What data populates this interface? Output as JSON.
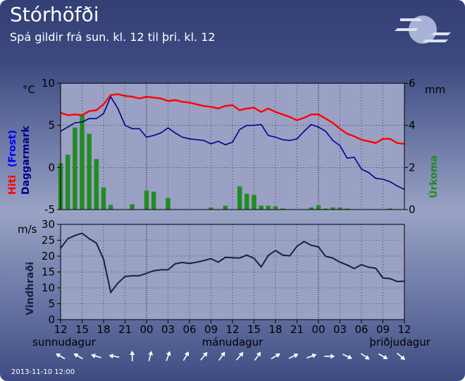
{
  "header": {
    "title": "Stórhöfði",
    "subtitle": "Spá gildir frá sun. kl. 12 til þri. kl. 12",
    "timestamp": "2013-11-10 12:00",
    "logo_icon": "vedurstofa-logo-icon"
  },
  "colors": {
    "temperature": "#ff0000",
    "dewpoint": "#00008b",
    "precipitation": "#228b22",
    "wind": "#1a1f40",
    "plot_bg": "#9aa1c4"
  },
  "chart_data": [
    {
      "type": "line",
      "y_unit_left": "°C",
      "y_unit_right": "mm",
      "ylabel_left_parts": [
        "Hiti",
        "(Frost)",
        "Daggarmark"
      ],
      "ylabel_right": "Úrkoma",
      "ylim_left": [
        -5,
        10
      ],
      "ylim_right": [
        0,
        6
      ],
      "yticks_left": [
        -5,
        0,
        5,
        10
      ],
      "yticks_right": [
        0,
        2,
        4,
        6
      ],
      "grid": "dotted",
      "x_range_hours": [
        12,
        60
      ],
      "series": [
        {
          "key": "temperature",
          "type": "line",
          "x": [
            12,
            13,
            14,
            15,
            16,
            17,
            18,
            19,
            20,
            21,
            22,
            23,
            24,
            25,
            26,
            27,
            28,
            29,
            30,
            31,
            32,
            33,
            34,
            35,
            36,
            37,
            38,
            39,
            40,
            41,
            42,
            43,
            44,
            45,
            46,
            47,
            48,
            49,
            50,
            51,
            52,
            53,
            54,
            55,
            56,
            57,
            58,
            59,
            60
          ],
          "values": [
            6.5,
            6.2,
            6.3,
            6.2,
            6.7,
            6.8,
            7.5,
            8.6,
            8.7,
            8.5,
            8.4,
            8.2,
            8.4,
            8.3,
            8.2,
            7.9,
            8.0,
            7.8,
            7.7,
            7.5,
            7.3,
            7.2,
            7.0,
            7.3,
            7.4,
            6.8,
            7.0,
            7.1,
            6.6,
            7.0,
            6.6,
            6.3,
            6.0,
            5.6,
            5.9,
            6.3,
            6.3,
            5.8,
            5.3,
            4.6,
            4.0,
            3.7,
            3.3,
            3.1,
            2.9,
            3.4,
            3.4,
            2.9,
            2.8
          ]
        },
        {
          "key": "dewpoint",
          "type": "line",
          "x": [
            12,
            13,
            14,
            15,
            16,
            17,
            18,
            19,
            20,
            21,
            22,
            23,
            24,
            25,
            26,
            27,
            28,
            29,
            30,
            31,
            32,
            33,
            34,
            35,
            36,
            37,
            38,
            39,
            40,
            41,
            42,
            43,
            44,
            45,
            46,
            47,
            48,
            49,
            50,
            51,
            52,
            53,
            54,
            55,
            56,
            57,
            58,
            59,
            60
          ],
          "values": [
            4.3,
            4.8,
            5.3,
            5.4,
            5.8,
            5.8,
            6.4,
            8.4,
            7.0,
            5.0,
            4.6,
            4.6,
            3.6,
            3.8,
            4.1,
            4.7,
            4.1,
            3.6,
            3.4,
            3.3,
            3.2,
            2.8,
            3.1,
            2.7,
            3.0,
            4.5,
            5.0,
            5.0,
            5.1,
            3.8,
            3.6,
            3.3,
            3.2,
            3.4,
            4.3,
            5.1,
            4.8,
            4.3,
            3.2,
            2.6,
            1.1,
            1.2,
            -0.2,
            -0.6,
            -1.3,
            -1.4,
            -1.7,
            -2.2,
            -2.6
          ]
        },
        {
          "key": "precipitation",
          "type": "bar",
          "axis": "right",
          "x": [
            12,
            13,
            14,
            15,
            16,
            17,
            18,
            19,
            20,
            21,
            22,
            23,
            24,
            25,
            26,
            27,
            28,
            29,
            30,
            31,
            32,
            33,
            34,
            35,
            36,
            37,
            38,
            39,
            40,
            41,
            42,
            43,
            44,
            45,
            46,
            47,
            48,
            49,
            50,
            51,
            52,
            53,
            54,
            55,
            56,
            57,
            58,
            59,
            60
          ],
          "values": [
            2.2,
            2.6,
            3.9,
            4.5,
            3.6,
            2.4,
            1.05,
            0.22,
            0,
            0,
            0.25,
            0,
            0.9,
            0.85,
            0,
            0.55,
            0,
            0,
            0,
            0,
            0,
            0.1,
            0,
            0.18,
            0,
            1.1,
            0.75,
            0.7,
            0.18,
            0.18,
            0.15,
            0.05,
            0,
            0,
            0,
            0.1,
            0.2,
            0.05,
            0.1,
            0.1,
            0.05,
            0,
            0,
            0,
            0,
            0,
            0.05,
            0,
            0
          ]
        }
      ]
    },
    {
      "type": "line",
      "y_unit": "m/s",
      "ylabel": "Vindhraði",
      "ylim": [
        0,
        30
      ],
      "yticks": [
        0,
        5,
        10,
        15,
        20,
        25,
        30
      ],
      "grid": "dotted",
      "x_range_hours": [
        12,
        60
      ],
      "x_tick_labels": [
        "12",
        "15",
        "18",
        "21",
        "00",
        "03",
        "06",
        "09",
        "12",
        "15",
        "18",
        "21",
        "00",
        "03",
        "06",
        "09",
        "12"
      ],
      "x_tick_hours": [
        12,
        15,
        18,
        21,
        24,
        27,
        30,
        33,
        36,
        39,
        42,
        45,
        48,
        51,
        54,
        57,
        60
      ],
      "day_labels": [
        {
          "label": "sunnudagur",
          "hour": 12
        },
        {
          "label": "mánudagur",
          "hour": 36
        },
        {
          "label": "þriðjudagur",
          "hour": 60
        }
      ],
      "series": [
        {
          "key": "wind",
          "x": [
            12,
            13,
            14,
            15,
            16,
            17,
            18,
            19,
            20,
            21,
            22,
            23,
            24,
            25,
            26,
            27,
            28,
            29,
            30,
            31,
            32,
            33,
            34,
            35,
            36,
            37,
            38,
            39,
            40,
            41,
            42,
            43,
            44,
            45,
            46,
            47,
            48,
            49,
            50,
            51,
            52,
            53,
            54,
            55,
            56,
            57,
            58,
            59,
            60
          ],
          "values": [
            22.5,
            25.5,
            26.5,
            27.2,
            25.5,
            24.1,
            19.0,
            8.6,
            11.5,
            13.6,
            13.8,
            13.8,
            14.6,
            15.4,
            15.7,
            15.7,
            17.6,
            18.0,
            17.7,
            18.1,
            18.6,
            19.2,
            18.1,
            19.6,
            19.5,
            19.4,
            20.3,
            19.3,
            16.6,
            20.2,
            21.8,
            20.3,
            20.1,
            23.1,
            24.6,
            23.4,
            22.9,
            19.9,
            19.4,
            18.1,
            17.2,
            16.1,
            17.3,
            16.5,
            16.2,
            13.1,
            12.9,
            12.0,
            12.1
          ]
        }
      ],
      "wind_directions_deg": [
        300,
        300,
        285,
        280,
        0,
        15,
        20,
        30,
        40,
        35,
        40,
        35,
        60,
        65,
        70,
        90,
        115,
        125,
        120,
        130
      ]
    }
  ]
}
